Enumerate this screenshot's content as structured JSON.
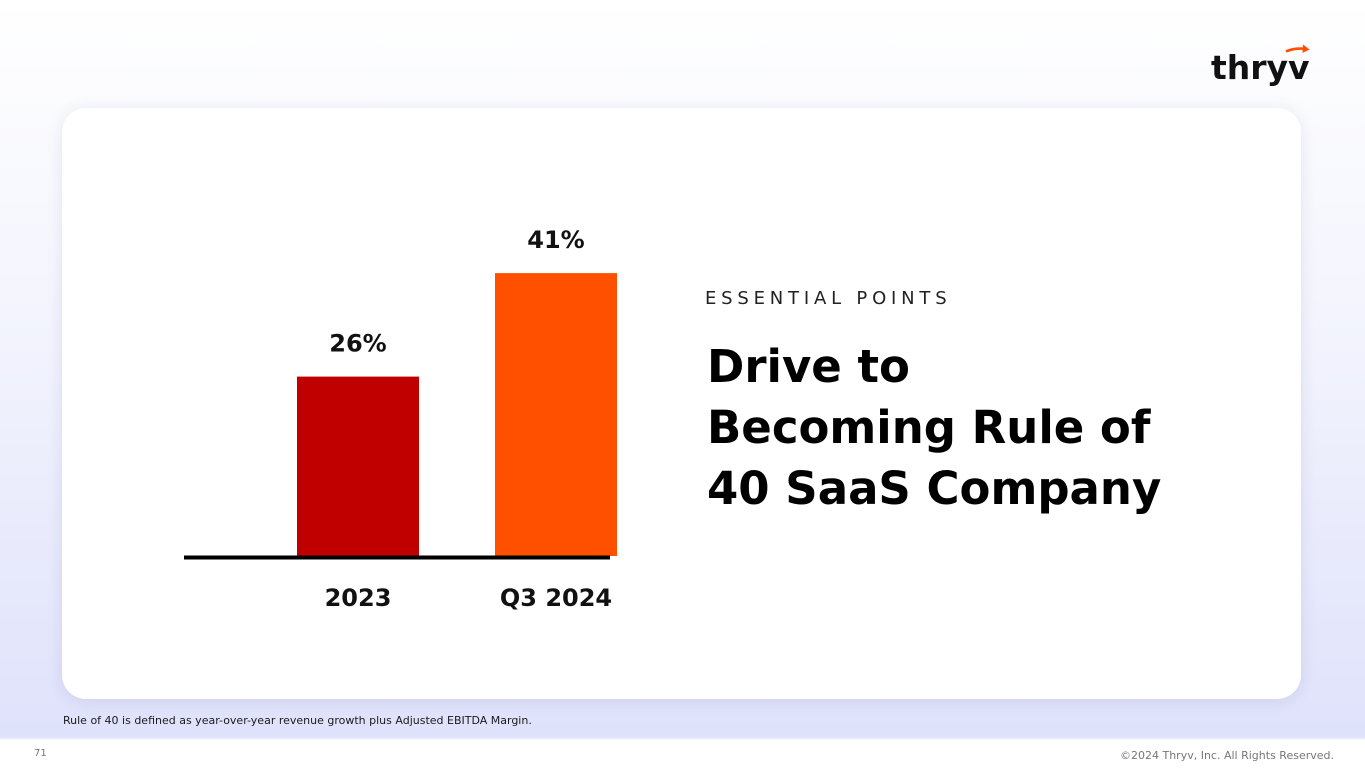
{
  "brand": {
    "logo_text": "thryv",
    "accent_color": "#ff5000"
  },
  "card": {
    "eyebrow": "ESSENTIAL POINTS",
    "headline": {
      "line1": "Drive to",
      "line2": "Becoming Rule of",
      "line3": "40 SaaS Company"
    }
  },
  "chart_data": {
    "type": "bar",
    "categories": [
      "2023",
      "Q3 2024"
    ],
    "values": [
      26,
      41
    ],
    "value_labels": [
      "26%",
      "41%"
    ],
    "ylim": [
      0,
      50
    ],
    "grid": false,
    "colors": [
      "#c00000",
      "#ff5000"
    ],
    "axis_color": "#000000"
  },
  "footer": {
    "footnote": "Rule of 40 is defined as year-over-year revenue growth plus Adjusted EBITDA Margin.",
    "page_number": "71",
    "copyright": "©2024 Thryv, Inc. All Rights Reserved."
  }
}
